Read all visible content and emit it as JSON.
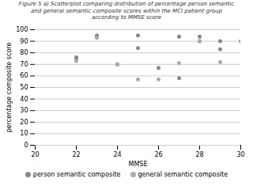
{
  "chart_data": {
    "type": "scatter",
    "title": "Figure 5 a) Scatterplot comparing distribution of percentage person semantic\nand general semantic composite scores within the MCI patient group\naccording to MMSE score",
    "xlabel": "MMSE",
    "ylabel": "percentage composite score",
    "xlim": [
      20,
      30
    ],
    "ylim": [
      0,
      100
    ],
    "xticks": [
      20,
      22,
      24,
      26,
      28,
      30
    ],
    "yticks": [
      0,
      10,
      20,
      30,
      40,
      50,
      60,
      70,
      80,
      90,
      100
    ],
    "grid": "y",
    "legend": "right",
    "series": [
      {
        "name": "person semantic composite",
        "color": "#888888",
        "x": [
          22,
          22,
          23,
          24,
          25,
          25,
          26,
          27,
          27,
          28,
          28,
          29,
          29,
          30
        ],
        "values": [
          75,
          76,
          95,
          70,
          84,
          95,
          67,
          94,
          58,
          90,
          94,
          83,
          90,
          90
        ]
      },
      {
        "name": "general semantic composite",
        "color": "#aaaaaa",
        "x": [
          22,
          23,
          24,
          25,
          26,
          27,
          28,
          29,
          30
        ],
        "values": [
          73,
          93,
          70,
          57,
          57,
          71,
          90,
          72,
          90
        ]
      }
    ]
  }
}
